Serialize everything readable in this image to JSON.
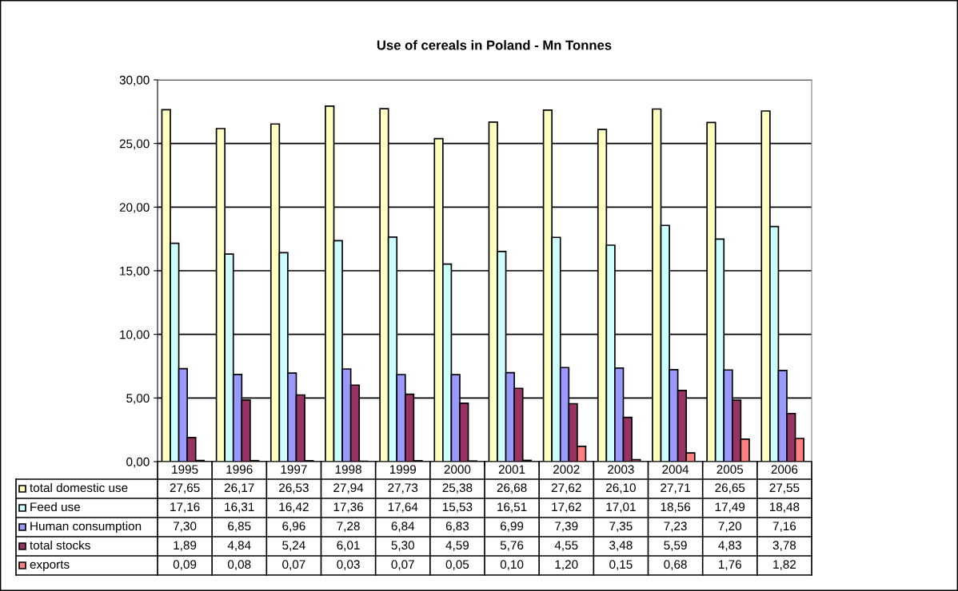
{
  "chart_data": {
    "type": "bar",
    "title": "Use of cereals in Poland - Mn Tonnes",
    "categories": [
      "1995",
      "1996",
      "1997",
      "1998",
      "1999",
      "2000",
      "2001",
      "2002",
      "2003",
      "2004",
      "2005",
      "2006"
    ],
    "series": [
      {
        "name": "total domestic use",
        "color": "#ffffc0",
        "values": [
          27.65,
          26.17,
          26.53,
          27.94,
          27.73,
          25.38,
          26.68,
          27.62,
          26.1,
          27.71,
          26.65,
          27.55
        ],
        "value_labels": [
          "27,65",
          "26,17",
          "26,53",
          "27,94",
          "27,73",
          "25,38",
          "26,68",
          "27,62",
          "26,10",
          "27,71",
          "26,65",
          "27,55"
        ]
      },
      {
        "name": "Feed use",
        "color": "#ccffff",
        "values": [
          17.16,
          16.31,
          16.42,
          17.36,
          17.64,
          15.53,
          16.51,
          17.62,
          17.01,
          18.56,
          17.49,
          18.48
        ],
        "value_labels": [
          "17,16",
          "16,31",
          "16,42",
          "17,36",
          "17,64",
          "15,53",
          "16,51",
          "17,62",
          "17,01",
          "18,56",
          "17,49",
          "18,48"
        ]
      },
      {
        "name": "Human consumption",
        "color": "#9999ff",
        "values": [
          7.3,
          6.85,
          6.96,
          7.28,
          6.84,
          6.83,
          6.99,
          7.39,
          7.35,
          7.23,
          7.2,
          7.16
        ],
        "value_labels": [
          "7,30",
          "6,85",
          "6,96",
          "7,28",
          "6,84",
          "6,83",
          "6,99",
          "7,39",
          "7,35",
          "7,23",
          "7,20",
          "7,16"
        ]
      },
      {
        "name": "total stocks",
        "color": "#993366",
        "values": [
          1.89,
          4.84,
          5.24,
          6.01,
          5.3,
          4.59,
          5.76,
          4.55,
          3.48,
          5.59,
          4.83,
          3.78
        ],
        "value_labels": [
          "1,89",
          "4,84",
          "5,24",
          "6,01",
          "5,30",
          "4,59",
          "5,76",
          "4,55",
          "3,48",
          "5,59",
          "4,83",
          "3,78"
        ]
      },
      {
        "name": "exports",
        "color": "#ff8080",
        "values": [
          0.09,
          0.08,
          0.07,
          0.03,
          0.07,
          0.05,
          0.1,
          1.2,
          0.15,
          0.68,
          1.76,
          1.82
        ],
        "value_labels": [
          "0,09",
          "0,08",
          "0,07",
          "0,03",
          "0,07",
          "0,05",
          "0,10",
          "1,20",
          "0,15",
          "0,68",
          "1,76",
          "1,82"
        ]
      }
    ],
    "ylim": [
      0,
      30
    ],
    "yticks": [
      {
        "value": 0,
        "label": "0,00"
      },
      {
        "value": 5,
        "label": "5,00"
      },
      {
        "value": 10,
        "label": "10,00"
      },
      {
        "value": 15,
        "label": "15,00"
      },
      {
        "value": 20,
        "label": "20,00"
      },
      {
        "value": 25,
        "label": "25,00"
      },
      {
        "value": 30,
        "label": "30,00"
      }
    ],
    "grid": "y",
    "legend": "bottom"
  }
}
